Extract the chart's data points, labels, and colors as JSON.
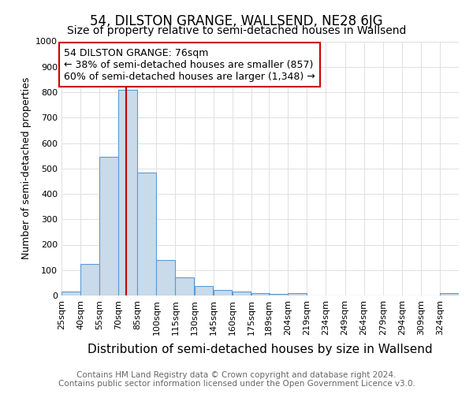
{
  "title": "54, DILSTON GRANGE, WALLSEND, NE28 6JG",
  "subtitle": "Size of property relative to semi-detached houses in Wallsend",
  "xlabel": "Distribution of semi-detached houses by size in Wallsend",
  "ylabel": "Number of semi-detached properties",
  "footer_line1": "Contains HM Land Registry data © Crown copyright and database right 2024.",
  "footer_line2": "Contains public sector information licensed under the Open Government Licence v3.0.",
  "bins": [
    25,
    40,
    55,
    70,
    85,
    100,
    115,
    130,
    145,
    160,
    175,
    189,
    204,
    219,
    234,
    249,
    264,
    279,
    294,
    309,
    324
  ],
  "bin_width": 15,
  "counts": [
    15,
    125,
    545,
    810,
    485,
    138,
    72,
    38,
    22,
    15,
    10,
    5,
    8,
    0,
    0,
    0,
    0,
    0,
    0,
    0,
    8
  ],
  "bar_color": "#c9daea",
  "bar_edge_color": "#5b9bd5",
  "property_value": 76,
  "property_line_color": "#cc0000",
  "annotation_text_line1": "54 DILSTON GRANGE: 76sqm",
  "annotation_text_line2": "← 38% of semi-detached houses are smaller (857)",
  "annotation_text_line3": "60% of semi-detached houses are larger (1,348) →",
  "annotation_box_facecolor": "#ffffff",
  "annotation_box_edgecolor": "#cc0000",
  "ylim": [
    0,
    1000
  ],
  "xlim_left": 25,
  "xlim_right": 339,
  "background_color": "#ffffff",
  "grid_color": "#e0e0e0",
  "title_fontsize": 12,
  "subtitle_fontsize": 10,
  "xlabel_fontsize": 11,
  "ylabel_fontsize": 9,
  "tick_fontsize": 8,
  "annotation_fontsize": 9,
  "footer_fontsize": 7.5
}
